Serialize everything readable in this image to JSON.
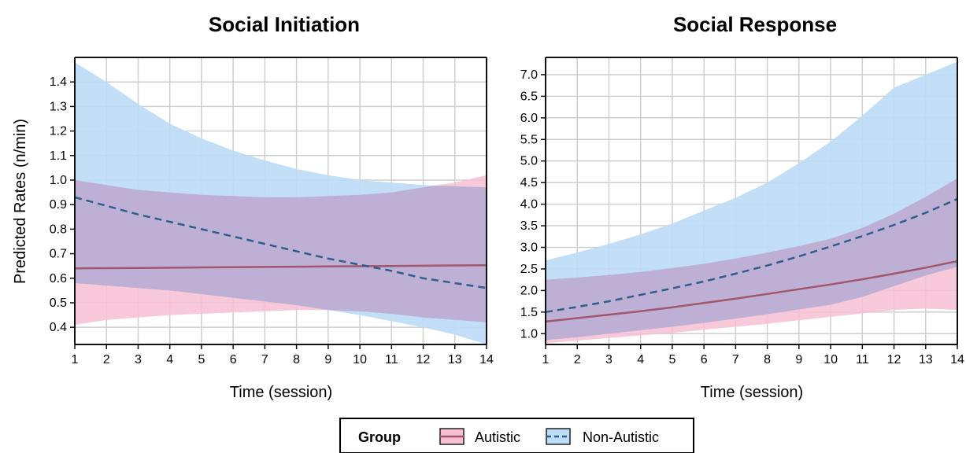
{
  "colors": {
    "autistic_line": "#a0566b",
    "autistic_band": "#f7bfd4",
    "nonautistic_line": "#2f5d8c",
    "nonautistic_band": "#bcdcf7",
    "grid": "#cfcfcf"
  },
  "legend": {
    "title": "Group",
    "items": [
      {
        "label": "Autistic",
        "style": "solid",
        "fill": "#f7bfd4",
        "stroke": "#a0566b"
      },
      {
        "label": "Non-Autistic",
        "style": "dashed",
        "fill": "#bcdcf7",
        "stroke": "#2f5d8c"
      }
    ]
  },
  "chart_data": [
    {
      "type": "line",
      "title": "Social Initiation",
      "xlabel": "Time (session)",
      "ylabel": "Predicted Rates (n/min)",
      "xlim": [
        1,
        14
      ],
      "ylim": [
        0.33,
        1.5
      ],
      "x_ticks": [
        1,
        2,
        3,
        4,
        5,
        6,
        7,
        8,
        9,
        10,
        11,
        12,
        13,
        14
      ],
      "y_ticks": [
        0.4,
        0.5,
        0.6,
        0.7,
        0.8,
        0.9,
        1.0,
        1.1,
        1.2,
        1.3,
        1.4
      ],
      "x": [
        1,
        2,
        3,
        4,
        5,
        6,
        7,
        8,
        9,
        10,
        11,
        12,
        13,
        14
      ],
      "series": [
        {
          "name": "Autistic",
          "style": "solid",
          "values": [
            0.64,
            0.641,
            0.642,
            0.643,
            0.644,
            0.645,
            0.646,
            0.647,
            0.648,
            0.649,
            0.65,
            0.651,
            0.652,
            0.653
          ],
          "lower": [
            0.41,
            0.43,
            0.44,
            0.45,
            0.455,
            0.46,
            0.465,
            0.47,
            0.47,
            0.465,
            0.455,
            0.44,
            0.43,
            0.42
          ],
          "upper": [
            1.0,
            0.98,
            0.96,
            0.95,
            0.94,
            0.935,
            0.93,
            0.93,
            0.935,
            0.94,
            0.95,
            0.97,
            0.99,
            1.02
          ]
        },
        {
          "name": "Non-Autistic",
          "style": "dashed",
          "values": [
            0.93,
            0.895,
            0.86,
            0.83,
            0.8,
            0.77,
            0.74,
            0.71,
            0.68,
            0.655,
            0.63,
            0.6,
            0.58,
            0.56
          ],
          "lower": [
            0.58,
            0.57,
            0.56,
            0.55,
            0.535,
            0.52,
            0.505,
            0.49,
            0.47,
            0.45,
            0.425,
            0.4,
            0.37,
            0.33
          ],
          "upper": [
            1.48,
            1.4,
            1.31,
            1.23,
            1.17,
            1.12,
            1.08,
            1.045,
            1.02,
            1.0,
            0.99,
            0.98,
            0.975,
            0.97
          ]
        }
      ]
    },
    {
      "type": "line",
      "title": "Social Response",
      "xlabel": "Time (session)",
      "ylabel": "",
      "xlim": [
        1,
        14
      ],
      "ylim": [
        0.75,
        7.4
      ],
      "x_ticks": [
        1,
        2,
        3,
        4,
        5,
        6,
        7,
        8,
        9,
        10,
        11,
        12,
        13,
        14
      ],
      "y_ticks": [
        1.0,
        1.5,
        2.0,
        2.5,
        3.0,
        3.5,
        4.0,
        4.5,
        5.0,
        5.5,
        6.0,
        6.5,
        7.0
      ],
      "x": [
        1,
        2,
        3,
        4,
        5,
        6,
        7,
        8,
        9,
        10,
        11,
        12,
        13,
        14
      ],
      "series": [
        {
          "name": "Autistic",
          "style": "solid",
          "values": [
            1.28,
            1.36,
            1.44,
            1.52,
            1.61,
            1.71,
            1.81,
            1.92,
            2.03,
            2.14,
            2.26,
            2.39,
            2.53,
            2.68
          ],
          "lower": [
            0.78,
            0.84,
            0.9,
            0.96,
            1.02,
            1.09,
            1.16,
            1.23,
            1.31,
            1.39,
            1.47,
            1.55,
            1.58,
            1.55
          ],
          "upper": [
            2.25,
            2.3,
            2.36,
            2.43,
            2.52,
            2.62,
            2.74,
            2.88,
            3.03,
            3.2,
            3.45,
            3.78,
            4.17,
            4.6
          ]
        },
        {
          "name": "Non-Autistic",
          "style": "dashed",
          "values": [
            1.5,
            1.62,
            1.75,
            1.9,
            2.05,
            2.21,
            2.39,
            2.58,
            2.79,
            3.02,
            3.26,
            3.52,
            3.8,
            4.12
          ],
          "lower": [
            0.85,
            0.92,
            1.0,
            1.08,
            1.16,
            1.25,
            1.35,
            1.45,
            1.56,
            1.67,
            1.85,
            2.1,
            2.35,
            2.55
          ],
          "upper": [
            2.7,
            2.88,
            3.08,
            3.3,
            3.55,
            3.85,
            4.15,
            4.5,
            4.95,
            5.45,
            6.05,
            6.7,
            7.0,
            7.3
          ]
        }
      ]
    }
  ]
}
